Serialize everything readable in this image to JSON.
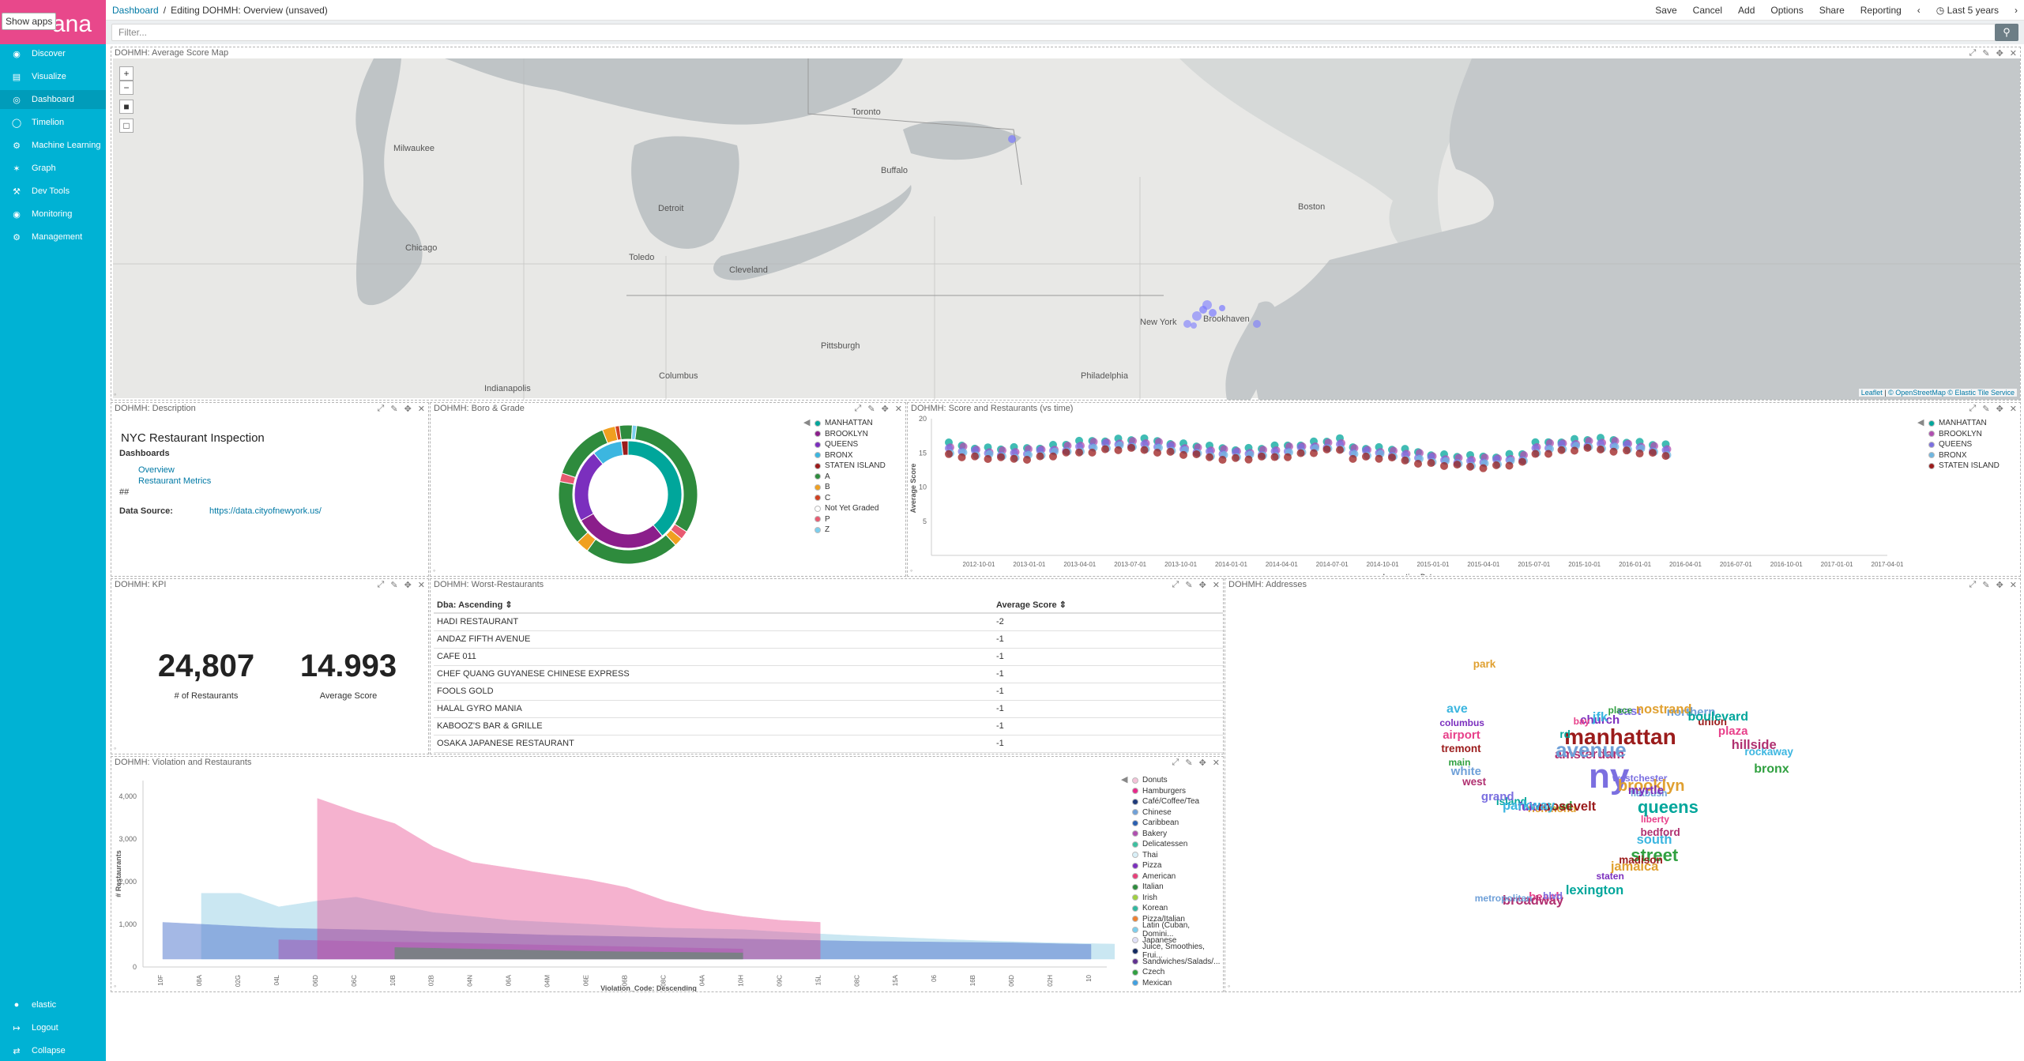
{
  "app": {
    "tooltip": "Show apps",
    "logo_text": "ana"
  },
  "nav": [
    {
      "icon": "compass-icon",
      "label": "Discover"
    },
    {
      "icon": "bar-chart-icon",
      "label": "Visualize"
    },
    {
      "icon": "dashboard-icon",
      "label": "Dashboard",
      "active": true
    },
    {
      "icon": "timelion-icon",
      "label": "Timelion"
    },
    {
      "icon": "ml-icon",
      "label": "Machine Learning"
    },
    {
      "icon": "graph-icon",
      "label": "Graph"
    },
    {
      "icon": "wrench-icon",
      "label": "Dev Tools"
    },
    {
      "icon": "eye-icon",
      "label": "Monitoring"
    },
    {
      "icon": "gear-icon",
      "label": "Management"
    }
  ],
  "nav_bottom": [
    {
      "icon": "user-icon",
      "label": "elastic"
    },
    {
      "icon": "logout-icon",
      "label": "Logout"
    },
    {
      "icon": "collapse-icon",
      "label": "Collapse"
    }
  ],
  "breadcrumb": {
    "root": "Dashboard",
    "sep": "/",
    "current": "Editing DOHMH: Overview (unsaved)"
  },
  "top_menu": [
    "Save",
    "Cancel",
    "Add",
    "Options",
    "Share",
    "Reporting"
  ],
  "time_range": "Last 5 years",
  "filter": {
    "placeholder": "Filter..."
  },
  "panels": {
    "map": {
      "title": "DOHMH: Average Score Map",
      "attribution": {
        "leaflet": "Leaflet",
        "osm": "© OpenStreetMap",
        "tiles": "© Elastic Tile Service"
      },
      "cities": [
        "Milwaukee",
        "Chicago",
        "Detroit",
        "Toronto",
        "Buffalo",
        "Toledo",
        "Cleveland",
        "Boston",
        "New York",
        "Brookhaven",
        "Pittsburgh",
        "Columbus",
        "Philadelphia",
        "Indianapolis"
      ]
    },
    "description": {
      "title": "DOHMH: Description",
      "heading": "NYC Restaurant Inspection",
      "sub": "Dashboards",
      "links": [
        "Overview",
        "Restaurant Metrics"
      ],
      "hashes": "##",
      "source_label": "Data Source:",
      "source_url": "https://data.cityofnewyork.us/"
    },
    "boro": {
      "title": "DOHMH: Boro & Grade",
      "legend": [
        {
          "label": "MANHATTAN",
          "color": "#00a69b"
        },
        {
          "label": "BROOKLYN",
          "color": "#8b1e8b"
        },
        {
          "label": "QUEENS",
          "color": "#7b2fbe"
        },
        {
          "label": "BRONX",
          "color": "#3cb6e0"
        },
        {
          "label": "STATEN ISLAND",
          "color": "#9b1b1b"
        },
        {
          "label": "A",
          "color": "#2e8b3d"
        },
        {
          "label": "B",
          "color": "#f0a020"
        },
        {
          "label": "C",
          "color": "#d04020"
        },
        {
          "label": "Not Yet Graded",
          "color": "#ffffff"
        },
        {
          "label": "P",
          "color": "#e85a70"
        },
        {
          "label": "Z",
          "color": "#7ccfee"
        }
      ]
    },
    "score": {
      "title": "DOHMH: Score and Restaurants (vs time)",
      "xlabel": "Inspection Date",
      "ylabel": "Average Score",
      "yticks": [
        "20",
        "15",
        "10",
        "5"
      ],
      "xticks": [
        "2012-10-01",
        "2013-01-01",
        "2013-04-01",
        "2013-07-01",
        "2013-10-01",
        "2014-01-01",
        "2014-04-01",
        "2014-07-01",
        "2014-10-01",
        "2015-01-01",
        "2015-04-01",
        "2015-07-01",
        "2015-10-01",
        "2016-01-01",
        "2016-04-01",
        "2016-07-01",
        "2016-10-01",
        "2017-01-01",
        "2017-04-01"
      ],
      "legend": [
        {
          "label": "MANHATTAN",
          "color": "#00a69b"
        },
        {
          "label": "BROOKLYN",
          "color": "#b04fb0"
        },
        {
          "label": "QUEENS",
          "color": "#7b6fe0"
        },
        {
          "label": "BRONX",
          "color": "#6fb6e0"
        },
        {
          "label": "STATEN ISLAND",
          "color": "#9b1b1b"
        }
      ]
    },
    "kpi": {
      "title": "DOHMH: KPI",
      "metrics": [
        {
          "value": "24,807",
          "label": "# of Restaurants"
        },
        {
          "value": "14.993",
          "label": "Average Score"
        }
      ]
    },
    "worst": {
      "title": "DOHMH: Worst-Restaurants",
      "columns": [
        "Dba: Ascending ⇕",
        "Average Score ⇕"
      ],
      "rows": [
        [
          "HADI RESTAURANT",
          "-2"
        ],
        [
          "ANDAZ FIFTH AVENUE",
          "-1"
        ],
        [
          "CAFE 011",
          "-1"
        ],
        [
          "CHEF QUANG GUYANESE CHINESE EXPRESS",
          "-1"
        ],
        [
          "FOOLS GOLD",
          "-1"
        ],
        [
          "HALAL GYRO MANIA",
          "-1"
        ],
        [
          "KABOOZ'S BAR & GRILLE",
          "-1"
        ],
        [
          "OSAKA JAPANESE RESTAURANT",
          "-1"
        ]
      ]
    },
    "addresses": {
      "title": "DOHMH: Addresses",
      "words": [
        "westchester",
        "richmond",
        "church",
        "south",
        "main",
        "union",
        "beach",
        "amsterdam",
        "flatbush",
        "island",
        "east",
        "jamaica",
        "columbus",
        "rockaway",
        "road",
        "manhattan",
        "liberty",
        "west",
        "northern",
        "lexington",
        "ny",
        "brooklyn",
        "fulton",
        "jfk",
        "street",
        "tremont",
        "plaza",
        "broadway",
        "avenue",
        "queens",
        "grand",
        "nostrand",
        "staten",
        "ave",
        "bronx",
        "roosevelt",
        "bay",
        "bedford",
        "white",
        "boulevard",
        "blvd",
        "park",
        "myrtle",
        "parkway",
        "place",
        "madison",
        "airport",
        "hillside",
        "metropolitan",
        "rd"
      ]
    },
    "violation": {
      "title": "DOHMH: Violation and Restaurants",
      "xlabel": "Violation_Code: Descending",
      "ylabel": "# Restaurants",
      "yticks": [
        "4,000",
        "3,000",
        "2,000",
        "1,000",
        "0"
      ],
      "xticks": [
        "10F",
        "08A",
        "02G",
        "04L",
        "06D",
        "06C",
        "10B",
        "02B",
        "04N",
        "06A",
        "04M",
        "06E",
        "06B",
        "08C",
        "04A",
        "10H",
        "09C",
        "15L",
        "08C",
        "15A",
        "06",
        "16B",
        "06D",
        "02H",
        "10"
      ],
      "legend": [
        {
          "label": "Donuts",
          "color": "#f4c2d8"
        },
        {
          "label": "Hamburgers",
          "color": "#e7298a"
        },
        {
          "label": "Café/Coffee/Tea",
          "color": "#1f3a7a"
        },
        {
          "label": "Chinese",
          "color": "#6fa0d8"
        },
        {
          "label": "Caribbean",
          "color": "#2a5fb0"
        },
        {
          "label": "Bakery",
          "color": "#b04fb0"
        },
        {
          "label": "Delicatessen",
          "color": "#3cc0a0"
        },
        {
          "label": "Thai",
          "color": "#d9f0f8"
        },
        {
          "label": "Pizza",
          "color": "#7b2fbe"
        },
        {
          "label": "American",
          "color": "#e8407a"
        },
        {
          "label": "Italian",
          "color": "#2e8b3d"
        },
        {
          "label": "Irish",
          "color": "#a0d040"
        },
        {
          "label": "Korean",
          "color": "#30b8a0"
        },
        {
          "label": "Pizza/Italian",
          "color": "#f08030"
        },
        {
          "label": "Latin (Cuban, Domini...",
          "color": "#7ccfee"
        },
        {
          "label": "Japanese",
          "color": "#e0e0f8"
        },
        {
          "label": "Juice, Smoothies, Frui...",
          "color": "#122a60"
        },
        {
          "label": "Sandwiches/Salads/...",
          "color": "#603090"
        },
        {
          "label": "Czech",
          "color": "#30a040"
        },
        {
          "label": "Mexican",
          "color": "#40a0e0"
        }
      ]
    }
  }
}
